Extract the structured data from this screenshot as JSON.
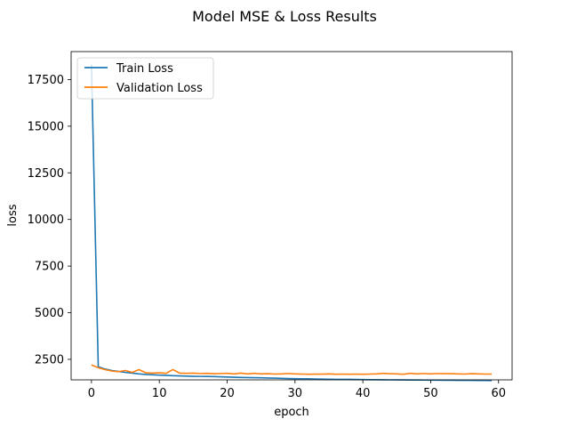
{
  "chart_data": {
    "type": "line",
    "title": "Model MSE & Loss Results",
    "xlabel": "epoch",
    "ylabel": "loss",
    "xlim": [
      -3,
      62
    ],
    "ylim": [
      1400,
      19000
    ],
    "xticks": [
      0,
      10,
      20,
      30,
      40,
      50,
      60
    ],
    "yticks": [
      2500,
      5000,
      7500,
      10000,
      12500,
      15000,
      17500
    ],
    "grid": false,
    "legend_position": "top-left",
    "series": [
      {
        "name": "Train Loss",
        "color": "#1f77b4",
        "x": [
          0,
          1,
          2,
          3,
          4,
          5,
          6,
          7,
          8,
          9,
          10,
          11,
          12,
          13,
          14,
          15,
          16,
          17,
          18,
          19,
          20,
          21,
          22,
          23,
          24,
          25,
          26,
          27,
          28,
          29,
          30,
          31,
          32,
          33,
          34,
          35,
          36,
          37,
          38,
          39,
          40,
          41,
          42,
          43,
          44,
          45,
          46,
          47,
          48,
          49,
          50,
          51,
          52,
          53,
          54,
          55,
          56,
          57,
          58,
          59
        ],
        "values": [
          18300,
          2100,
          1980,
          1900,
          1850,
          1800,
          1760,
          1720,
          1690,
          1670,
          1655,
          1640,
          1625,
          1610,
          1600,
          1590,
          1585,
          1580,
          1575,
          1565,
          1550,
          1540,
          1530,
          1520,
          1515,
          1510,
          1500,
          1490,
          1480,
          1470,
          1465,
          1460,
          1455,
          1445,
          1440,
          1435,
          1430,
          1428,
          1425,
          1420,
          1415,
          1410,
          1408,
          1405,
          1400,
          1398,
          1395,
          1393,
          1390,
          1388,
          1385,
          1383,
          1380,
          1378,
          1375,
          1372,
          1370,
          1368,
          1365,
          1362
        ]
      },
      {
        "name": "Validation Loss",
        "color": "#ff7f0e",
        "x": [
          0,
          1,
          2,
          3,
          4,
          5,
          6,
          7,
          8,
          9,
          10,
          11,
          12,
          13,
          14,
          15,
          16,
          17,
          18,
          19,
          20,
          21,
          22,
          23,
          24,
          25,
          26,
          27,
          28,
          29,
          30,
          31,
          32,
          33,
          34,
          35,
          36,
          37,
          38,
          39,
          40,
          41,
          42,
          43,
          44,
          45,
          46,
          47,
          48,
          49,
          50,
          51,
          52,
          53,
          54,
          55,
          56,
          57,
          58,
          59
        ],
        "values": [
          2200,
          2050,
          1950,
          1870,
          1840,
          1900,
          1800,
          1950,
          1780,
          1760,
          1780,
          1750,
          1950,
          1760,
          1750,
          1760,
          1740,
          1750,
          1730,
          1740,
          1750,
          1720,
          1760,
          1720,
          1750,
          1720,
          1730,
          1710,
          1720,
          1740,
          1720,
          1710,
          1700,
          1710,
          1705,
          1720,
          1700,
          1710,
          1700,
          1710,
          1700,
          1710,
          1720,
          1750,
          1730,
          1720,
          1700,
          1750,
          1720,
          1740,
          1720,
          1740,
          1730,
          1730,
          1720,
          1710,
          1730,
          1720,
          1710,
          1710
        ]
      }
    ]
  }
}
